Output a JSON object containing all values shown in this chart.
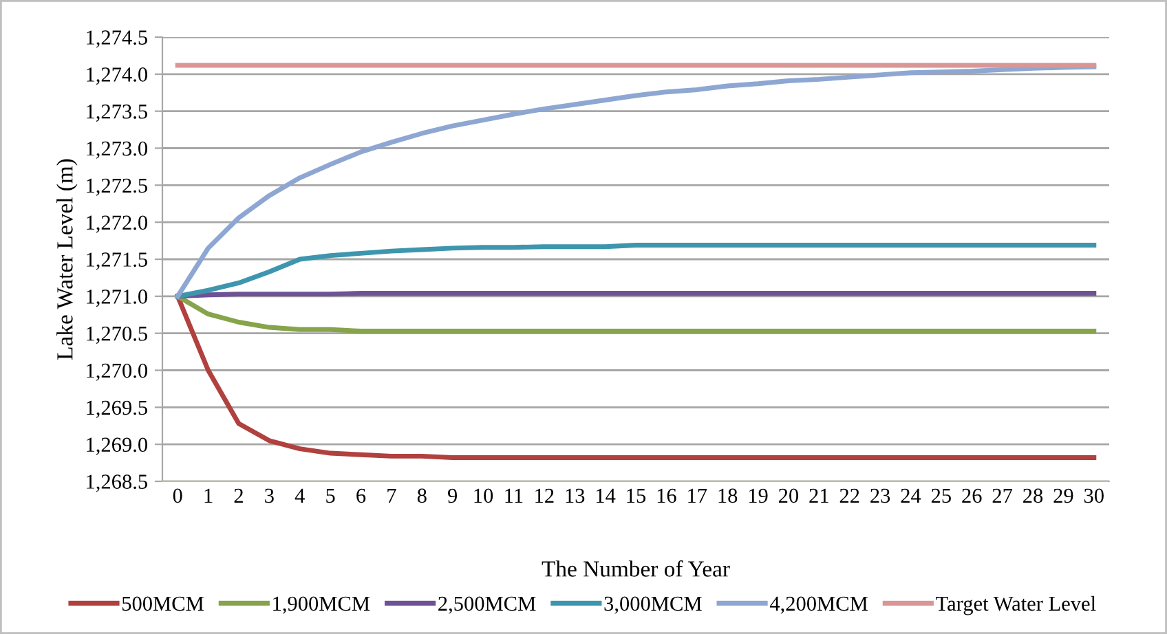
{
  "chart_data": {
    "type": "line",
    "xlabel": "The Number of Year",
    "ylabel": "Lake Water Level (m)",
    "categories": [
      "0",
      "1",
      "2",
      "3",
      "4",
      "5",
      "6",
      "7",
      "8",
      "9",
      "10",
      "11",
      "12",
      "13",
      "14",
      "15",
      "16",
      "17",
      "18",
      "19",
      "20",
      "21",
      "22",
      "23",
      "24",
      "25",
      "26",
      "27",
      "28",
      "29",
      "30"
    ],
    "series": [
      {
        "name": "500MCM",
        "color": "#b0413e",
        "values": [
          1271.0,
          1270.0,
          1269.28,
          1269.05,
          1268.94,
          1268.88,
          1268.86,
          1268.84,
          1268.84,
          1268.82,
          1268.82,
          1268.82,
          1268.82,
          1268.82,
          1268.82,
          1268.82,
          1268.82,
          1268.82,
          1268.82,
          1268.82,
          1268.82,
          1268.82,
          1268.82,
          1268.82,
          1268.82,
          1268.82,
          1268.82,
          1268.82,
          1268.82,
          1268.82,
          1268.82
        ]
      },
      {
        "name": "1,900MCM",
        "color": "#86a44a",
        "values": [
          1271.0,
          1270.76,
          1270.65,
          1270.58,
          1270.55,
          1270.55,
          1270.53,
          1270.53,
          1270.53,
          1270.53,
          1270.53,
          1270.53,
          1270.53,
          1270.53,
          1270.53,
          1270.53,
          1270.53,
          1270.53,
          1270.53,
          1270.53,
          1270.53,
          1270.53,
          1270.53,
          1270.53,
          1270.53,
          1270.53,
          1270.53,
          1270.53,
          1270.53,
          1270.53,
          1270.53
        ]
      },
      {
        "name": "2,500MCM",
        "color": "#6e5295",
        "values": [
          1271.0,
          1271.02,
          1271.03,
          1271.03,
          1271.03,
          1271.03,
          1271.04,
          1271.04,
          1271.04,
          1271.04,
          1271.04,
          1271.04,
          1271.04,
          1271.04,
          1271.04,
          1271.04,
          1271.04,
          1271.04,
          1271.04,
          1271.04,
          1271.04,
          1271.04,
          1271.04,
          1271.04,
          1271.04,
          1271.04,
          1271.04,
          1271.04,
          1271.04,
          1271.04,
          1271.04
        ]
      },
      {
        "name": "3,000MCM",
        "color": "#3d96ae",
        "values": [
          1271.0,
          1271.08,
          1271.18,
          1271.33,
          1271.5,
          1271.55,
          1271.58,
          1271.61,
          1271.63,
          1271.65,
          1271.66,
          1271.66,
          1271.67,
          1271.67,
          1271.67,
          1271.69,
          1271.69,
          1271.69,
          1271.69,
          1271.69,
          1271.69,
          1271.69,
          1271.69,
          1271.69,
          1271.69,
          1271.69,
          1271.69,
          1271.69,
          1271.69,
          1271.69,
          1271.69
        ]
      },
      {
        "name": "4,200MCM",
        "color": "#8ea7d2",
        "values": [
          1271.0,
          1271.65,
          1272.06,
          1272.36,
          1272.6,
          1272.78,
          1272.95,
          1273.08,
          1273.2,
          1273.3,
          1273.38,
          1273.46,
          1273.53,
          1273.59,
          1273.65,
          1273.71,
          1273.76,
          1273.79,
          1273.84,
          1273.87,
          1273.91,
          1273.93,
          1273.96,
          1273.99,
          1274.02,
          1274.03,
          1274.04,
          1274.06,
          1274.08,
          1274.09,
          1274.1
        ]
      },
      {
        "name": "Target Water Level",
        "color": "#d99694",
        "values": [
          1274.12,
          1274.12,
          1274.12,
          1274.12,
          1274.12,
          1274.12,
          1274.12,
          1274.12,
          1274.12,
          1274.12,
          1274.12,
          1274.12,
          1274.12,
          1274.12,
          1274.12,
          1274.12,
          1274.12,
          1274.12,
          1274.12,
          1274.12,
          1274.12,
          1274.12,
          1274.12,
          1274.12,
          1274.12,
          1274.12,
          1274.12,
          1274.12,
          1274.12,
          1274.12,
          1274.12
        ]
      }
    ],
    "ylim": [
      1268.5,
      1274.5
    ],
    "yticks": [
      {
        "value": 1268.5,
        "label": "1,268.5"
      },
      {
        "value": 1269.0,
        "label": "1,269.0"
      },
      {
        "value": 1269.5,
        "label": "1,269.5"
      },
      {
        "value": 1270.0,
        "label": "1,270.0"
      },
      {
        "value": 1270.5,
        "label": "1,270.5"
      },
      {
        "value": 1271.0,
        "label": "1,271.0"
      },
      {
        "value": 1271.5,
        "label": "1,271.5"
      },
      {
        "value": 1272.0,
        "label": "1,272.0"
      },
      {
        "value": 1272.5,
        "label": "1,272.5"
      },
      {
        "value": 1273.0,
        "label": "1,273.0"
      },
      {
        "value": 1273.5,
        "label": "1,273.5"
      },
      {
        "value": 1274.0,
        "label": "1,274.0"
      },
      {
        "value": 1274.5,
        "label": "1,274.5"
      }
    ],
    "grid": "y",
    "legend": "bottom",
    "marker": "none",
    "line_style": "solid"
  }
}
